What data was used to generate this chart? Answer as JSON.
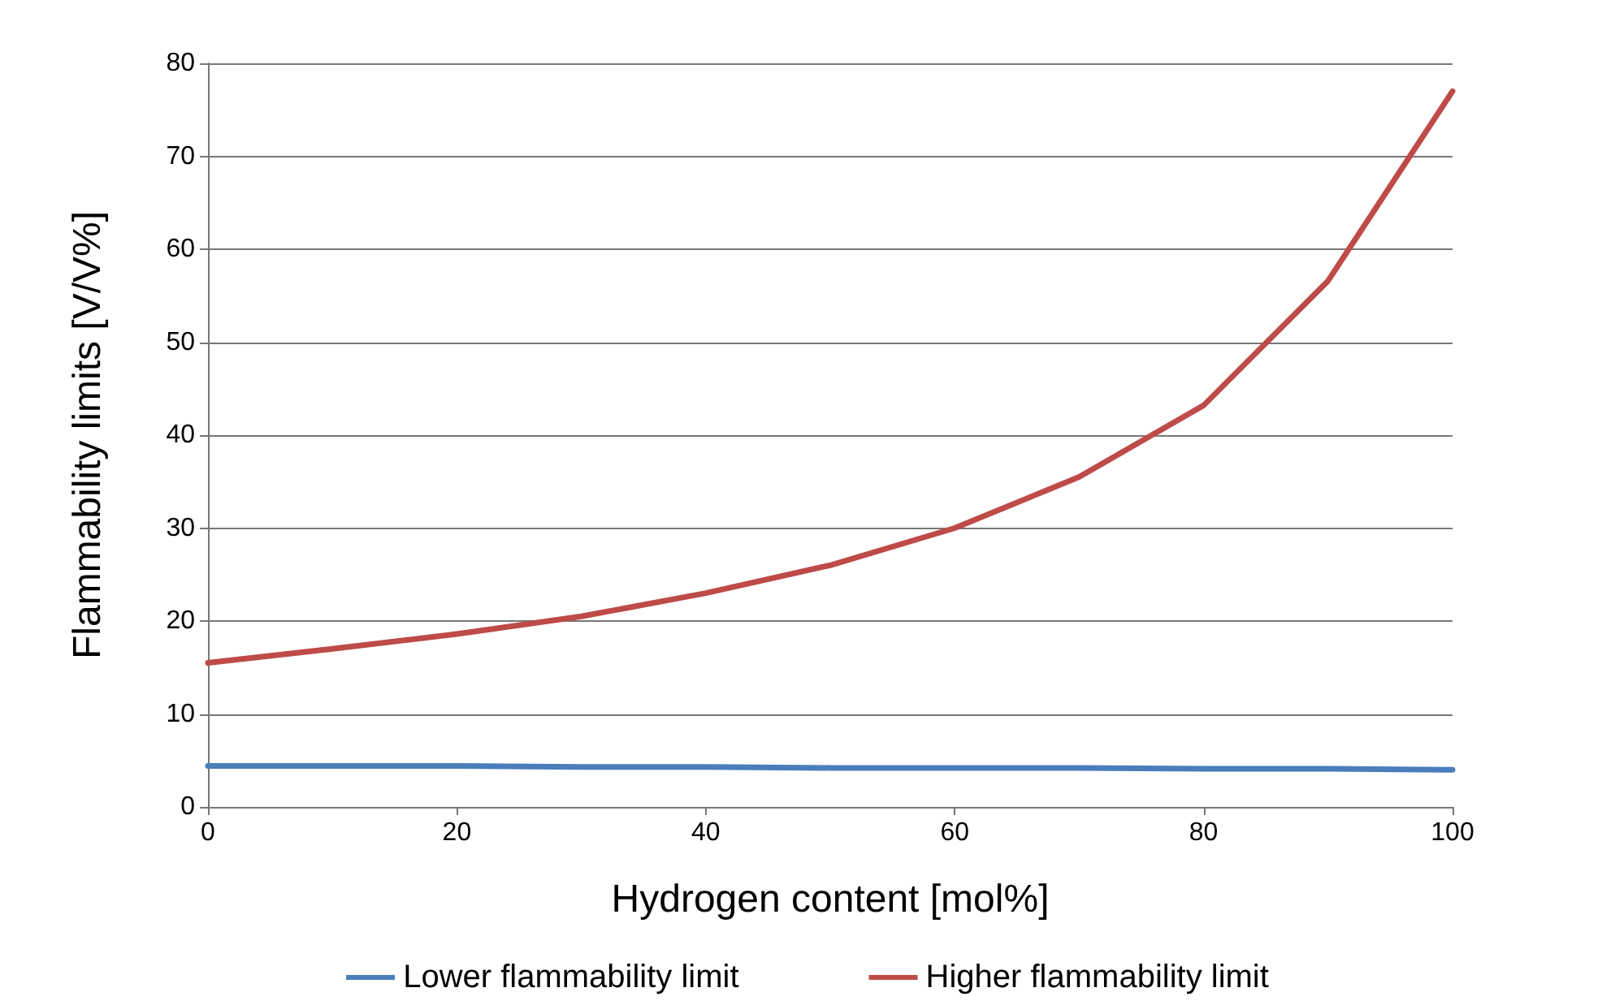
{
  "chart_data": {
    "type": "line",
    "xlabel": "Hydrogen content [mol%]",
    "ylabel": "Flammability limits [V/V%]",
    "x": [
      0,
      10,
      20,
      30,
      40,
      50,
      60,
      70,
      80,
      90,
      100
    ],
    "series": [
      {
        "name": "Lower flammability limit",
        "color": "#4a7ebb",
        "values": [
          4.4,
          4.4,
          4.4,
          4.3,
          4.3,
          4.2,
          4.2,
          4.2,
          4.1,
          4.1,
          4.0
        ]
      },
      {
        "name": "Higher flammability limit",
        "color": "#be4b48",
        "values": [
          15.5,
          17,
          18.6,
          20.5,
          23,
          26,
          30,
          35.5,
          43.2,
          56.6,
          77
        ]
      }
    ],
    "xlim": [
      0,
      100
    ],
    "xticks": [
      0,
      20,
      40,
      60,
      80,
      100
    ],
    "ylim": [
      0,
      80
    ],
    "yticks": [
      0,
      10,
      20,
      30,
      40,
      50,
      60,
      70,
      80
    ],
    "grid": "y",
    "legend": "bottom",
    "marker": "none",
    "line_style": "solid"
  }
}
